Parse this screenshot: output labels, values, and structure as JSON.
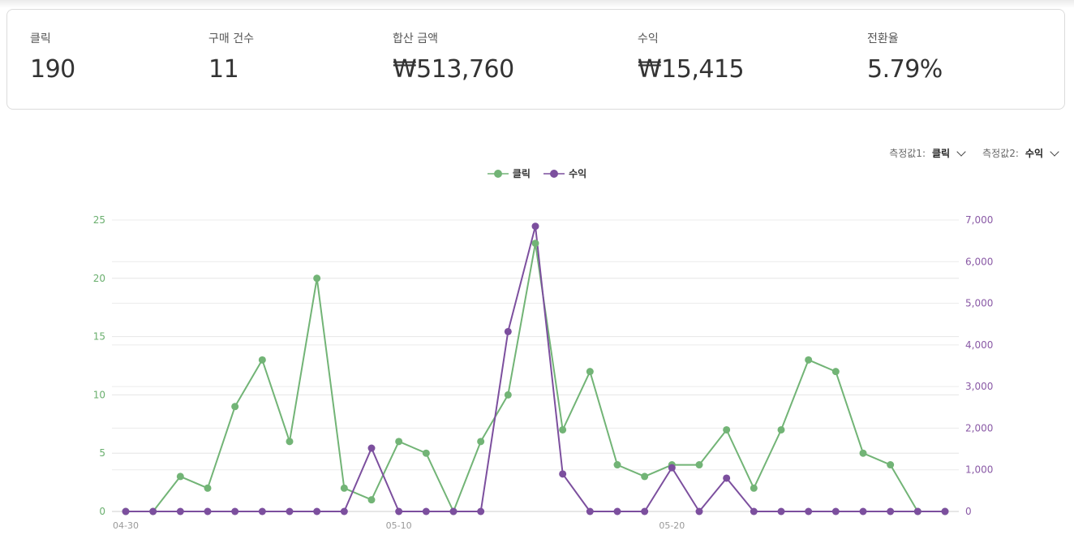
{
  "stats": [
    {
      "label": "클릭",
      "value": "190"
    },
    {
      "label": "구매 건수",
      "value": "11"
    },
    {
      "label": "합산 금액",
      "value": "₩513,760"
    },
    {
      "label": "수익",
      "value": "₩15,415"
    },
    {
      "label": "전환율",
      "value": "5.79%"
    }
  ],
  "controls": {
    "metric1_label": "측정값1:",
    "metric1_value": "클릭",
    "metric2_label": "측정값2:",
    "metric2_value": "수익"
  },
  "colors": {
    "clicks": "#72b476",
    "revenue": "#7c4f9e"
  },
  "chart_data": {
    "type": "line",
    "x": [
      "04-30",
      "05-01",
      "05-02",
      "05-03",
      "05-04",
      "05-05",
      "05-06",
      "05-07",
      "05-08",
      "05-09",
      "05-10",
      "05-11",
      "05-12",
      "05-13",
      "05-14",
      "05-15",
      "05-16",
      "05-17",
      "05-18",
      "05-19",
      "05-20",
      "05-21",
      "05-22",
      "05-23",
      "05-24",
      "05-25",
      "05-26",
      "05-27",
      "05-28",
      "05-29",
      "05-30"
    ],
    "x_tick_labels": [
      "04-30",
      "05-10",
      "05-20"
    ],
    "series": [
      {
        "name": "클릭",
        "axis": "left",
        "values": [
          0,
          0,
          3,
          2,
          9,
          13,
          6,
          20,
          2,
          1,
          6,
          5,
          0,
          6,
          10,
          23,
          7,
          12,
          4,
          3,
          4,
          4,
          7,
          2,
          7,
          13,
          12,
          5,
          4,
          0,
          0
        ]
      },
      {
        "name": "수익",
        "axis": "right",
        "values": [
          0,
          0,
          0,
          0,
          0,
          0,
          0,
          0,
          0,
          1520,
          0,
          0,
          0,
          0,
          4320,
          6850,
          900,
          0,
          0,
          0,
          1050,
          0,
          800,
          0,
          0,
          0,
          0,
          0,
          0,
          0,
          0
        ]
      }
    ],
    "y_left": {
      "lim": [
        0,
        25
      ],
      "ticks": [
        "0",
        "5",
        "10",
        "15",
        "20",
        "25"
      ]
    },
    "y_right": {
      "lim": [
        0,
        7000
      ],
      "ticks": [
        "0",
        "1,000",
        "2,000",
        "3,000",
        "4,000",
        "5,000",
        "6,000",
        "7,000"
      ]
    },
    "grid": true,
    "legend": "top-center"
  }
}
